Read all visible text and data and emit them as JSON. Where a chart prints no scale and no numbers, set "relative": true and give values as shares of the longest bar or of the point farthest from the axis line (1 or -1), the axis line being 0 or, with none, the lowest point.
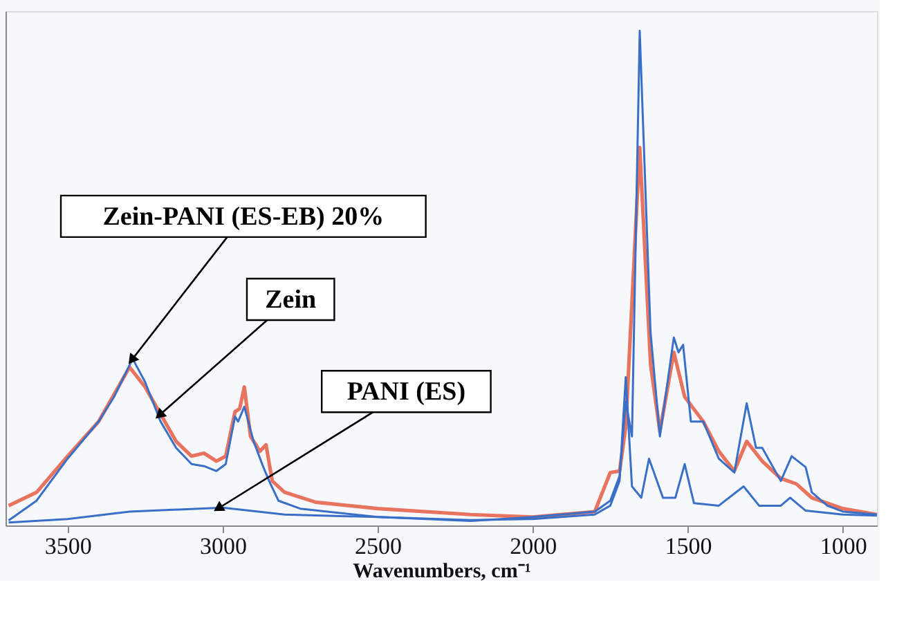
{
  "chart_data": {
    "type": "line",
    "relative": true,
    "xlabel": "Wavenumbers, cm⁻¹",
    "xlim": [
      3700,
      890
    ],
    "xticks": [
      3500,
      3000,
      2500,
      2000,
      1500,
      1000
    ],
    "grid": false,
    "marker": "none",
    "line_style": "solid",
    "series": [
      {
        "color": "#e8735f",
        "x": [
          3690,
          3600,
          3500,
          3400,
          3300,
          3250,
          3200,
          3150,
          3100,
          3060,
          3020,
          2990,
          2960,
          2945,
          2930,
          2910,
          2880,
          2860,
          2840,
          2800,
          2700,
          2500,
          2200,
          2000,
          1800,
          1750,
          1720,
          1700,
          1655,
          1620,
          1590,
          1545,
          1510,
          1450,
          1400,
          1350,
          1310,
          1260,
          1200,
          1150,
          1100,
          1000,
          890
        ],
        "values": [
          0.04,
          0.067,
          0.14,
          0.21,
          0.32,
          0.28,
          0.225,
          0.17,
          0.14,
          0.146,
          0.13,
          0.14,
          0.23,
          0.236,
          0.28,
          0.18,
          0.15,
          0.163,
          0.09,
          0.067,
          0.047,
          0.034,
          0.022,
          0.017,
          0.028,
          0.107,
          0.11,
          0.2,
          0.764,
          0.326,
          0.19,
          0.35,
          0.26,
          0.21,
          0.15,
          0.11,
          0.17,
          0.13,
          0.095,
          0.084,
          0.056,
          0.034,
          0.022
        ]
      },
      {
        "color": "#3a6fc8",
        "x": [
          3690,
          3600,
          3500,
          3400,
          3350,
          3290,
          3250,
          3200,
          3150,
          3100,
          3060,
          3020,
          2990,
          2960,
          2950,
          2930,
          2900,
          2870,
          2850,
          2820,
          2750,
          2500,
          2200,
          2000,
          1800,
          1750,
          1720,
          1700,
          1680,
          1655,
          1620,
          1590,
          1545,
          1530,
          1515,
          1490,
          1450,
          1400,
          1350,
          1310,
          1280,
          1260,
          1200,
          1165,
          1120,
          1100,
          1050,
          1000,
          890
        ],
        "values": [
          0.01,
          0.05,
          0.135,
          0.21,
          0.26,
          0.337,
          0.29,
          0.21,
          0.157,
          0.124,
          0.12,
          0.11,
          0.124,
          0.22,
          0.21,
          0.24,
          0.17,
          0.12,
          0.09,
          0.05,
          0.034,
          0.017,
          0.009,
          0.017,
          0.028,
          0.05,
          0.1,
          0.25,
          0.18,
          1.0,
          0.39,
          0.18,
          0.38,
          0.35,
          0.365,
          0.21,
          0.21,
          0.135,
          0.107,
          0.247,
          0.157,
          0.157,
          0.09,
          0.14,
          0.118,
          0.067,
          0.04,
          0.028,
          0.022
        ]
      },
      {
        "color": "#3a6fc8",
        "x": [
          3690,
          3500,
          3300,
          3000,
          2800,
          2500,
          2200,
          2000,
          1800,
          1750,
          1720,
          1700,
          1680,
          1650,
          1625,
          1580,
          1540,
          1510,
          1480,
          1400,
          1320,
          1270,
          1200,
          1170,
          1120,
          1000,
          890
        ],
        "values": [
          0.006,
          0.013,
          0.028,
          0.036,
          0.022,
          0.017,
          0.011,
          0.013,
          0.022,
          0.04,
          0.09,
          0.3,
          0.079,
          0.056,
          0.135,
          0.056,
          0.056,
          0.124,
          0.045,
          0.04,
          0.079,
          0.04,
          0.04,
          0.056,
          0.03,
          0.022,
          0.02
        ]
      }
    ],
    "annotations": [
      {
        "text": "Zein-PANI (ES-EB) 20%",
        "x": 3290,
        "y": 0.337
      },
      {
        "text": "Zein",
        "x": 3200,
        "y": 0.225
      },
      {
        "text": "PANI (ES)",
        "x": 3010,
        "y": 0.036
      }
    ]
  }
}
